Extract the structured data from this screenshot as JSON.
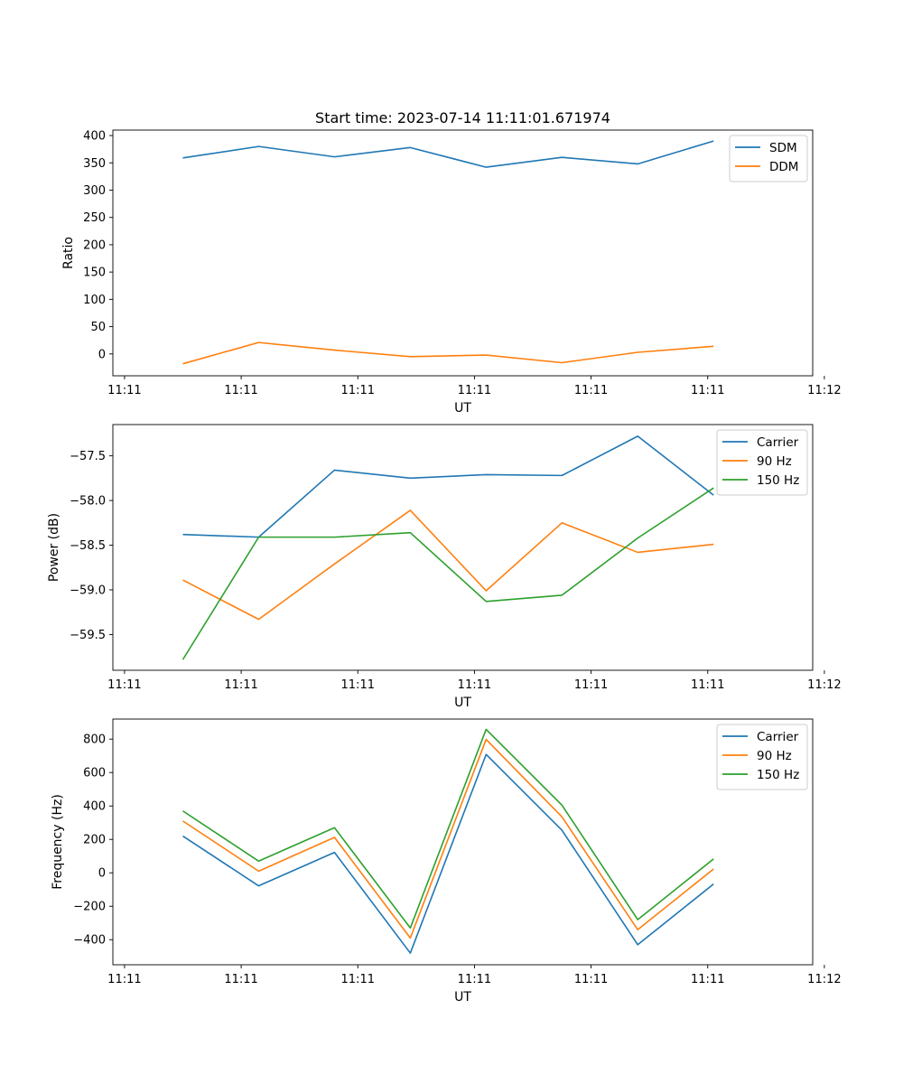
{
  "chart_data": [
    {
      "type": "line",
      "title": "Start time: 2023-07-14 11:11:01.671974",
      "xlabel": "UT",
      "ylabel": "Ratio",
      "x": [
        0.5,
        1.15,
        1.8,
        2.45,
        3.1,
        3.75,
        4.4,
        5.05
      ],
      "xlim": [
        -0.1,
        5.9
      ],
      "xticks": [
        0,
        1,
        2,
        3,
        4,
        5,
        6
      ],
      "xtick_labels": [
        "11:11",
        "11:11",
        "11:11",
        "11:11",
        "11:11",
        "11:11",
        "11:12"
      ],
      "ylim": [
        -40,
        410
      ],
      "yticks": [
        0,
        50,
        100,
        150,
        200,
        250,
        300,
        350,
        400
      ],
      "ytick_labels": [
        "0",
        "50",
        "100",
        "150",
        "200",
        "250",
        "300",
        "350",
        "400"
      ],
      "legend": "top-right",
      "series": [
        {
          "name": "SDM",
          "color": "#1f77b4",
          "values": [
            359,
            380,
            361,
            378,
            342,
            360,
            348,
            390
          ]
        },
        {
          "name": "DDM",
          "color": "#ff7f0e",
          "values": [
            -18,
            21,
            7,
            -5,
            -2,
            -16,
            3,
            14
          ]
        }
      ]
    },
    {
      "type": "line",
      "title": "",
      "xlabel": "UT",
      "ylabel": "Power (dB)",
      "x": [
        0.5,
        1.15,
        1.8,
        2.45,
        3.1,
        3.75,
        4.4,
        5.05
      ],
      "xlim": [
        -0.1,
        5.9
      ],
      "xticks": [
        0,
        1,
        2,
        3,
        4,
        5,
        6
      ],
      "xtick_labels": [
        "11:11",
        "11:11",
        "11:11",
        "11:11",
        "11:11",
        "11:11",
        "11:12"
      ],
      "ylim": [
        -59.9,
        -57.15
      ],
      "yticks": [
        -59.5,
        -59.0,
        -58.5,
        -58.0,
        -57.5
      ],
      "ytick_labels": [
        "−59.5",
        "−59.0",
        "−58.5",
        "−58.0",
        "−57.5"
      ],
      "legend": "top-right",
      "series": [
        {
          "name": "Carrier",
          "color": "#1f77b4",
          "values": [
            -58.38,
            -58.41,
            -57.66,
            -57.75,
            -57.71,
            -57.72,
            -57.28,
            -57.94
          ]
        },
        {
          "name": "90 Hz",
          "color": "#ff7f0e",
          "values": [
            -58.89,
            -59.33,
            -58.71,
            -58.11,
            -59.01,
            -58.25,
            -58.58,
            -58.49
          ]
        },
        {
          "name": "150 Hz",
          "color": "#2ca02c",
          "values": [
            -59.78,
            -58.41,
            -58.41,
            -58.36,
            -59.13,
            -59.06,
            -58.42,
            -57.86
          ]
        }
      ]
    },
    {
      "type": "line",
      "title": "",
      "xlabel": "UT",
      "ylabel": "Frequency (Hz)",
      "x": [
        0.5,
        1.15,
        1.8,
        2.45,
        3.1,
        3.75,
        4.4,
        5.05
      ],
      "xlim": [
        -0.1,
        5.9
      ],
      "xticks": [
        0,
        1,
        2,
        3,
        4,
        5,
        6
      ],
      "xtick_labels": [
        "11:11",
        "11:11",
        "11:11",
        "11:11",
        "11:11",
        "11:11",
        "11:12"
      ],
      "ylim": [
        -550,
        920
      ],
      "yticks": [
        -400,
        -200,
        0,
        200,
        400,
        600,
        800
      ],
      "ytick_labels": [
        "−400",
        "−200",
        "0",
        "200",
        "400",
        "600",
        "800"
      ],
      "legend": "top-right",
      "series": [
        {
          "name": "Carrier",
          "color": "#1f77b4",
          "values": [
            220,
            -78,
            122,
            -480,
            708,
            255,
            -430,
            -67
          ]
        },
        {
          "name": "90 Hz",
          "color": "#ff7f0e",
          "values": [
            310,
            10,
            212,
            -390,
            798,
            335,
            -340,
            23
          ]
        },
        {
          "name": "150 Hz",
          "color": "#2ca02c",
          "values": [
            370,
            70,
            270,
            -330,
            858,
            405,
            -280,
            83
          ]
        }
      ]
    }
  ]
}
